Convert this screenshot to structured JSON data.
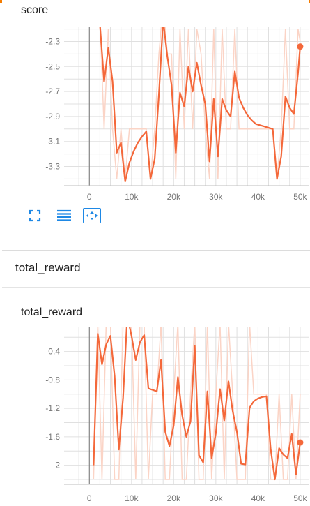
{
  "colors": {
    "accent_bar": "#f57c00",
    "series_line": "#f4683a",
    "series_raw": "#fbd4c6",
    "grid": "#e0e0e0",
    "axis": "#757575",
    "tool_icon": "#1e88e5"
  },
  "toolbar": {
    "fullscreen_icon": "fullscreen-icon",
    "toggle_log_icon": "list-lines-icon",
    "fit_domain_icon": "fit-domain-icon"
  },
  "section": {
    "title": "total_reward"
  },
  "charts": [
    {
      "title": "score",
      "chart_data": {
        "type": "line",
        "title": "score",
        "xlabel": "",
        "ylabel": "",
        "x_ticks": [
          "0",
          "10k",
          "20k",
          "30k",
          "40k",
          "50k"
        ],
        "y_ticks": [
          "-2.3",
          "-2.5",
          "-2.7",
          "-2.9",
          "-3.1",
          "-3.3"
        ],
        "xlim": [
          -5000,
          52000
        ],
        "ylim": [
          -3.42,
          -2.18
        ],
        "grid": true,
        "series": [
          {
            "smoothed": true,
            "x": [
              2500,
              3500,
              4500,
              5500,
              6500,
              7500,
              8500,
              9500,
              10500,
              11500,
              12500,
              13500,
              14500,
              15500,
              16500,
              17500,
              18500,
              19500,
              20500,
              21500,
              22500,
              23500,
              24500,
              25500,
              26500,
              27500,
              28500,
              29500,
              30500,
              31500,
              32500,
              33500,
              34500,
              35500,
              36500,
              37500,
              38500,
              39500,
              40500,
              41500,
              42500,
              43500,
              44500,
              45500,
              46500,
              47500,
              48500,
              49500,
              50000
            ],
            "y": [
              -2.16,
              -2.62,
              -2.35,
              -2.62,
              -3.19,
              -3.11,
              -3.42,
              -3.27,
              -3.18,
              -3.11,
              -3.06,
              -3.02,
              -3.4,
              -3.24,
              -2.72,
              -2.13,
              -2.42,
              -2.65,
              -3.19,
              -2.71,
              -2.82,
              -2.5,
              -2.7,
              -2.47,
              -2.65,
              -2.8,
              -3.26,
              -2.76,
              -3.22,
              -2.76,
              -2.85,
              -2.9,
              -2.54,
              -2.75,
              -2.83,
              -2.89,
              -2.93,
              -2.96,
              -2.97,
              -2.98,
              -2.99,
              -3.0,
              -3.4,
              -3.22,
              -2.74,
              -2.83,
              -2.88,
              -2.55,
              -2.34
            ]
          },
          {
            "smoothed": false,
            "x": [
              2500,
              3500,
              4500,
              5500,
              6500,
              7500,
              8500,
              9500,
              10500,
              11500,
              12500,
              13500,
              14500,
              15500,
              16500,
              17500,
              18500,
              19500,
              20500,
              21500,
              22500,
              23500,
              24500,
              25500,
              26500,
              27500,
              28500,
              29500,
              30500,
              31500,
              32500,
              33500,
              34500,
              35500,
              36500,
              37500,
              38500,
              39500,
              40500,
              41500,
              42500,
              43500,
              44500,
              45500,
              46500,
              47500,
              48500,
              49500,
              50000
            ],
            "y": [
              -2.1,
              -3.0,
              -2.2,
              -3.0,
              -3.4,
              -3.0,
              -3.4,
              -3.0,
              -3.0,
              -3.0,
              -3.0,
              -3.0,
              -3.4,
              -3.0,
              -2.4,
              -2.0,
              -2.4,
              -2.4,
              -3.4,
              -2.2,
              -3.0,
              -2.2,
              -3.0,
              -2.2,
              -2.4,
              -3.0,
              -3.4,
              -2.2,
              -3.4,
              -2.2,
              -3.0,
              -3.0,
              -2.2,
              -3.0,
              -3.0,
              -3.0,
              -3.0,
              -3.0,
              -3.0,
              -3.0,
              -3.0,
              -3.0,
              -3.4,
              -3.0,
              -2.2,
              -3.0,
              -3.0,
              -2.2,
              -2.3
            ]
          }
        ]
      }
    },
    {
      "title": "total_reward",
      "chart_data": {
        "type": "line",
        "title": "total_reward",
        "xlabel": "",
        "ylabel": "",
        "x_ticks": [
          "0",
          "10k",
          "20k",
          "30k",
          "40k",
          "50k"
        ],
        "y_ticks": [
          "-0.4",
          "-0.8",
          "-1.2",
          "-1.6",
          "-2"
        ],
        "xlim": [
          -5000,
          52000
        ],
        "ylim": [
          -2.21,
          -0.06
        ],
        "grid": true,
        "series": [
          {
            "smoothed": true,
            "x": [
              1000,
              2000,
              3000,
              4000,
              5000,
              6000,
              7000,
              8000,
              9000,
              10000,
              11000,
              12000,
              13000,
              14000,
              15000,
              16000,
              17000,
              18000,
              19000,
              20000,
              21000,
              22000,
              23000,
              24000,
              25000,
              26000,
              27000,
              28000,
              29000,
              30000,
              31000,
              32000,
              33000,
              34000,
              35000,
              36000,
              37000,
              38000,
              39000,
              40000,
              41000,
              42000,
              43000,
              44000,
              45000,
              46000,
              47000,
              48000,
              49000,
              50000
            ],
            "y": [
              -2.0,
              -0.15,
              -0.58,
              -0.3,
              -0.18,
              -0.75,
              -1.78,
              -1.05,
              0.1,
              -0.18,
              -0.52,
              -0.27,
              -0.17,
              -0.92,
              -0.94,
              -0.96,
              -0.52,
              -1.53,
              -1.73,
              -1.44,
              -0.76,
              -1.29,
              -1.6,
              -1.38,
              -0.32,
              -1.86,
              -1.96,
              -0.96,
              -1.9,
              -1.55,
              -0.93,
              -1.37,
              -0.82,
              -1.24,
              -1.53,
              -1.98,
              -1.99,
              -1.19,
              -1.1,
              -1.06,
              -1.04,
              -1.03,
              -1.77,
              -2.2,
              -1.76,
              -1.85,
              -1.9,
              -1.56,
              -2.13,
              -1.68
            ]
          },
          {
            "smoothed": false,
            "x": [
              1000,
              2000,
              3000,
              4000,
              5000,
              6000,
              7000,
              8000,
              9000,
              10000,
              11000,
              12000,
              13000,
              14000,
              15000,
              16000,
              17000,
              18000,
              19000,
              20000,
              21000,
              22000,
              23000,
              24000,
              25000,
              26000,
              27000,
              28000,
              29000,
              30000,
              31000,
              32000,
              33000,
              34000,
              35000,
              36000,
              37000,
              38000,
              39000,
              40000,
              41000,
              42000,
              43000,
              44000,
              45000,
              46000,
              47000,
              48000,
              49000,
              50000
            ],
            "y": [
              -2.2,
              0.0,
              -2.2,
              0.0,
              0.0,
              -2.2,
              -2.2,
              0.0,
              0.0,
              0.0,
              -2.2,
              0.0,
              0.0,
              -2.2,
              -1.0,
              -1.0,
              0.0,
              -2.2,
              -2.2,
              -1.0,
              0.0,
              -2.2,
              -2.2,
              -1.0,
              0.0,
              -2.2,
              -2.2,
              0.0,
              -2.2,
              -1.0,
              0.0,
              -2.2,
              0.0,
              -1.0,
              -2.2,
              -2.2,
              -2.2,
              0.0,
              -1.0,
              -1.0,
              -1.0,
              -1.0,
              -2.2,
              -2.2,
              -1.0,
              -2.2,
              -2.2,
              -1.0,
              -2.2,
              -1.0
            ]
          }
        ]
      }
    }
  ]
}
